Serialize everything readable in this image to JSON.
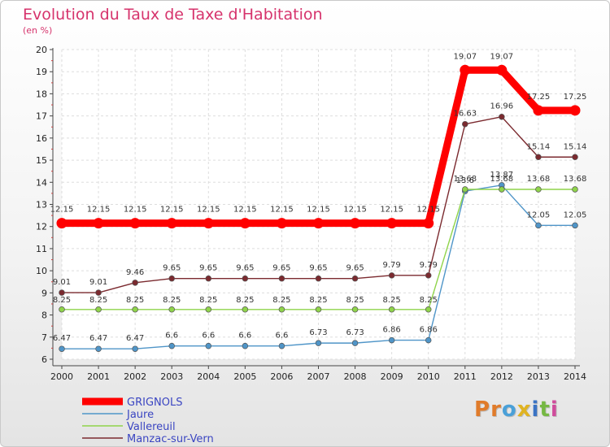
{
  "chart_data": {
    "type": "line",
    "title": "Evolution du Taux de Taxe d'Habitation",
    "subtitle": "(en %)",
    "x": [
      "2000",
      "2001",
      "2002",
      "2003",
      "2004",
      "2005",
      "2006",
      "2007",
      "2008",
      "2009",
      "2010",
      "2011",
      "2012",
      "2013",
      "2014"
    ],
    "ylim": [
      6,
      20
    ],
    "yticks": [
      "6",
      "7",
      "8",
      "9",
      "10",
      "11",
      "12",
      "13",
      "14",
      "15",
      "16",
      "17",
      "18",
      "19",
      "20"
    ],
    "grid": true,
    "legend_position": "bottom-left",
    "series": [
      {
        "name": "GRIGNOLS",
        "color": "#ff0000",
        "values": [
          12.15,
          12.15,
          12.15,
          12.15,
          12.15,
          12.15,
          12.15,
          12.15,
          12.15,
          12.15,
          12.15,
          19.07,
          19.07,
          17.25,
          17.25
        ],
        "labels": [
          "12.15",
          "12.15",
          "12.15",
          "12.15",
          "12.15",
          "12.15",
          "12.15",
          "12.15",
          "12.15",
          "12.15",
          "12.15",
          "19.07",
          "19.07",
          "17.25",
          "17.25"
        ]
      },
      {
        "name": "Jaure",
        "color": "#4f95c8",
        "values": [
          6.47,
          6.47,
          6.47,
          6.6,
          6.6,
          6.6,
          6.6,
          6.73,
          6.73,
          6.86,
          6.86,
          13.6,
          13.87,
          12.05,
          12.05
        ],
        "labels": [
          "6.47",
          "6.47",
          "6.47",
          "6.6",
          "6.6",
          "6.6",
          "6.6",
          "6.73",
          "6.73",
          "6.86",
          "6.86",
          "13.6",
          "13.87",
          "12.05",
          "12.05"
        ]
      },
      {
        "name": "Vallereuil",
        "color": "#8fd44a",
        "values": [
          8.25,
          8.25,
          8.25,
          8.25,
          8.25,
          8.25,
          8.25,
          8.25,
          8.25,
          8.25,
          8.25,
          13.68,
          13.68,
          13.68,
          13.68
        ],
        "labels": [
          "8.25",
          "8.25",
          "8.25",
          "8.25",
          "8.25",
          "8.25",
          "8.25",
          "8.25",
          "8.25",
          "8.25",
          "8.25",
          "13.68",
          "13.68",
          "13.68",
          "13.68"
        ]
      },
      {
        "name": "Manzac-sur-Vern",
        "color": "#7b2a2f",
        "values": [
          9.01,
          9.01,
          9.46,
          9.65,
          9.65,
          9.65,
          9.65,
          9.65,
          9.65,
          9.79,
          9.79,
          16.63,
          16.96,
          15.14,
          15.14
        ],
        "labels": [
          "9.01",
          "9.01",
          "9.46",
          "9.65",
          "9.65",
          "9.65",
          "9.65",
          "9.65",
          "9.65",
          "9.79",
          "9.79",
          "16.63",
          "16.96",
          "15.14",
          "15.14"
        ]
      }
    ]
  },
  "logo": {
    "letters": [
      "P",
      "r",
      "o",
      "x",
      "i",
      "t",
      "i"
    ],
    "colors": [
      "#e07b2a",
      "#e07b2a",
      "#4aa0d8",
      "#e0b321",
      "#3a73c4",
      "#76b843",
      "#d04c9c"
    ]
  }
}
